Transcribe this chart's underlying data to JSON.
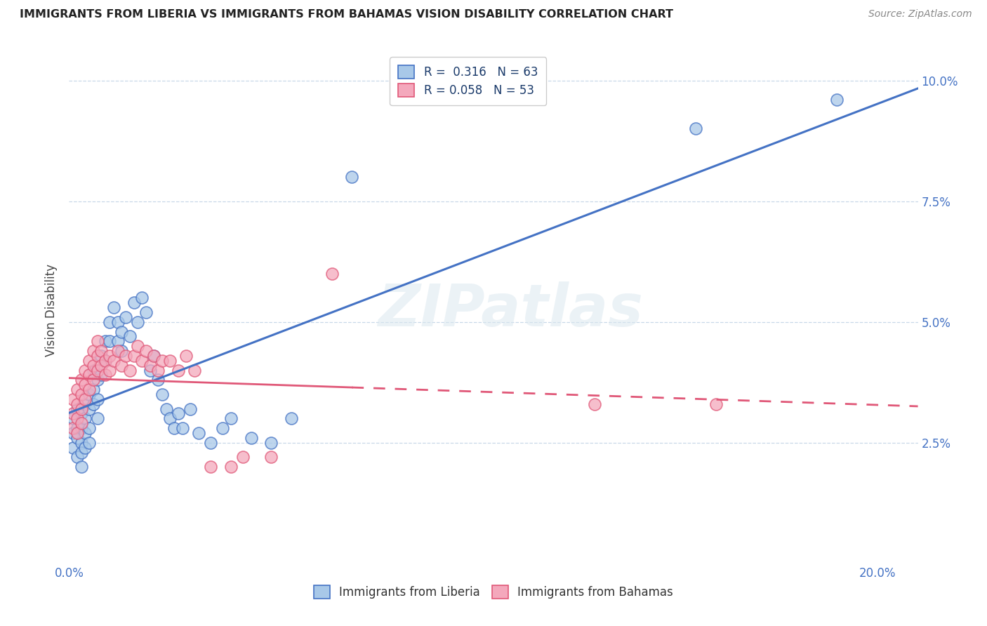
{
  "title": "IMMIGRANTS FROM LIBERIA VS IMMIGRANTS FROM BAHAMAS VISION DISABILITY CORRELATION CHART",
  "source": "Source: ZipAtlas.com",
  "ylabel": "Vision Disability",
  "xlabel_liberia": "Immigrants from Liberia",
  "xlabel_bahamas": "Immigrants from Bahamas",
  "xmin": 0.0,
  "xmax": 0.21,
  "ymin": 0.0,
  "ymax": 0.105,
  "ytick_vals": [
    0.025,
    0.05,
    0.075,
    0.1
  ],
  "ytick_labels": [
    "2.5%",
    "5.0%",
    "7.5%",
    "10.0%"
  ],
  "xtick_vals": [
    0.0,
    0.05,
    0.1,
    0.15,
    0.2
  ],
  "xtick_labels": [
    "0.0%",
    "",
    "",
    "",
    "20.0%"
  ],
  "R_liberia": 0.316,
  "N_liberia": 63,
  "R_bahamas": 0.058,
  "N_bahamas": 53,
  "color_liberia": "#a8c8e8",
  "color_bahamas": "#f4a8bc",
  "line_color_liberia": "#4472c4",
  "line_color_bahamas": "#e05878",
  "watermark": "ZIPatlas",
  "liberia_x": [
    0.001,
    0.001,
    0.001,
    0.002,
    0.002,
    0.002,
    0.002,
    0.003,
    0.003,
    0.003,
    0.003,
    0.003,
    0.004,
    0.004,
    0.004,
    0.004,
    0.005,
    0.005,
    0.005,
    0.005,
    0.006,
    0.006,
    0.006,
    0.007,
    0.007,
    0.007,
    0.008,
    0.008,
    0.009,
    0.009,
    0.01,
    0.01,
    0.011,
    0.012,
    0.012,
    0.013,
    0.013,
    0.014,
    0.015,
    0.016,
    0.017,
    0.018,
    0.019,
    0.02,
    0.021,
    0.022,
    0.023,
    0.024,
    0.025,
    0.026,
    0.027,
    0.028,
    0.03,
    0.032,
    0.035,
    0.038,
    0.04,
    0.045,
    0.05,
    0.055,
    0.07,
    0.155,
    0.19
  ],
  "liberia_y": [
    0.03,
    0.027,
    0.024,
    0.032,
    0.028,
    0.026,
    0.022,
    0.031,
    0.028,
    0.025,
    0.023,
    0.02,
    0.033,
    0.03,
    0.027,
    0.024,
    0.035,
    0.032,
    0.028,
    0.025,
    0.04,
    0.036,
    0.033,
    0.038,
    0.034,
    0.03,
    0.043,
    0.039,
    0.046,
    0.042,
    0.05,
    0.046,
    0.053,
    0.05,
    0.046,
    0.048,
    0.044,
    0.051,
    0.047,
    0.054,
    0.05,
    0.055,
    0.052,
    0.04,
    0.043,
    0.038,
    0.035,
    0.032,
    0.03,
    0.028,
    0.031,
    0.028,
    0.032,
    0.027,
    0.025,
    0.028,
    0.03,
    0.026,
    0.025,
    0.03,
    0.08,
    0.09,
    0.096
  ],
  "bahamas_x": [
    0.001,
    0.001,
    0.001,
    0.002,
    0.002,
    0.002,
    0.002,
    0.003,
    0.003,
    0.003,
    0.003,
    0.004,
    0.004,
    0.004,
    0.005,
    0.005,
    0.005,
    0.006,
    0.006,
    0.006,
    0.007,
    0.007,
    0.007,
    0.008,
    0.008,
    0.009,
    0.009,
    0.01,
    0.01,
    0.011,
    0.012,
    0.013,
    0.014,
    0.015,
    0.016,
    0.017,
    0.018,
    0.019,
    0.02,
    0.021,
    0.022,
    0.023,
    0.025,
    0.027,
    0.029,
    0.031,
    0.035,
    0.04,
    0.043,
    0.05,
    0.065,
    0.13,
    0.16
  ],
  "bahamas_y": [
    0.034,
    0.031,
    0.028,
    0.036,
    0.033,
    0.03,
    0.027,
    0.038,
    0.035,
    0.032,
    0.029,
    0.04,
    0.037,
    0.034,
    0.042,
    0.039,
    0.036,
    0.044,
    0.041,
    0.038,
    0.046,
    0.043,
    0.04,
    0.044,
    0.041,
    0.042,
    0.039,
    0.043,
    0.04,
    0.042,
    0.044,
    0.041,
    0.043,
    0.04,
    0.043,
    0.045,
    0.042,
    0.044,
    0.041,
    0.043,
    0.04,
    0.042,
    0.042,
    0.04,
    0.043,
    0.04,
    0.02,
    0.02,
    0.022,
    0.022,
    0.06,
    0.033,
    0.033
  ]
}
